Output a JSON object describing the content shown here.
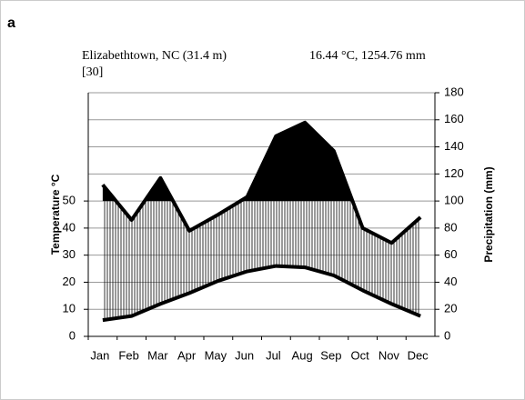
{
  "panel_label": "a",
  "chart_data": {
    "type": "climate",
    "title": "Elizabethtown, NC (31.4 m)",
    "subtitle": "[30]",
    "annotation": "16.44 °C, 1254.76 mm",
    "ylabel": "Temperature °C",
    "y2label": "Precipitation (mm)",
    "categories": [
      "Jan",
      "Feb",
      "Mar",
      "Apr",
      "May",
      "Jun",
      "Jul",
      "Aug",
      "Sep",
      "Oct",
      "Nov",
      "Dec"
    ],
    "series": [
      {
        "color": "#000000",
        "axis": "y",
        "values": [
          6,
          7.5,
          12,
          16,
          20.5,
          24,
          26,
          25.5,
          22.5,
          17,
          12,
          7.5
        ]
      },
      {
        "color": "#000000",
        "axis": "y2",
        "values": [
          112,
          86,
          117,
          78,
          90,
          103,
          148,
          158,
          137,
          80,
          69,
          88
        ]
      }
    ],
    "ylim": [
      0,
      90
    ],
    "yticks": [
      0,
      10,
      20,
      30,
      40,
      50
    ],
    "y2lim": [
      0,
      180
    ],
    "y2ticks": [
      0,
      20,
      40,
      60,
      80,
      100,
      120,
      140,
      160,
      180
    ],
    "grid": true
  }
}
